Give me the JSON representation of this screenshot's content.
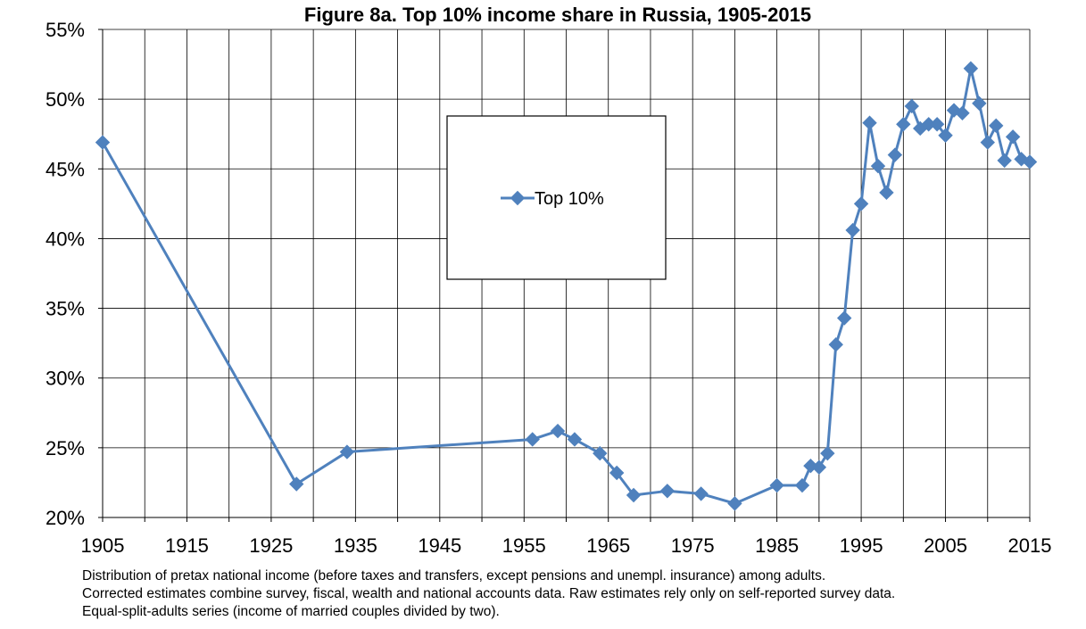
{
  "chart_data": {
    "type": "line",
    "title": "Figure 8a. Top 10% income share in Russia, 1905-2015",
    "xlabel": "",
    "ylabel": "",
    "xlim": [
      1905,
      2015
    ],
    "ylim": [
      20,
      55
    ],
    "x_ticks": [
      1905,
      1915,
      1925,
      1935,
      1945,
      1955,
      1965,
      1975,
      1985,
      1995,
      2005,
      2015
    ],
    "y_ticks": [
      20,
      25,
      30,
      35,
      40,
      45,
      50,
      55
    ],
    "y_tick_labels": [
      "20%",
      "25%",
      "30%",
      "35%",
      "40%",
      "45%",
      "50%",
      "55%"
    ],
    "grid": true,
    "legend_position": "upper-center",
    "series": [
      {
        "name": "Top 10%",
        "color": "#4F81BD",
        "marker": "diamond",
        "points": [
          [
            1905,
            46.9
          ],
          [
            1928,
            22.4
          ],
          [
            1934,
            24.7
          ],
          [
            1956,
            25.6
          ],
          [
            1959,
            26.2
          ],
          [
            1961,
            25.6
          ],
          [
            1964,
            24.6
          ],
          [
            1966,
            23.2
          ],
          [
            1968,
            21.6
          ],
          [
            1972,
            21.9
          ],
          [
            1976,
            21.7
          ],
          [
            1980,
            21.0
          ],
          [
            1985,
            22.3
          ],
          [
            1988,
            22.3
          ],
          [
            1989,
            23.7
          ],
          [
            1990,
            23.6
          ],
          [
            1991,
            24.6
          ],
          [
            1992,
            32.4
          ],
          [
            1993,
            34.3
          ],
          [
            1994,
            40.6
          ],
          [
            1995,
            42.5
          ],
          [
            1996,
            48.3
          ],
          [
            1997,
            45.2
          ],
          [
            1998,
            43.3
          ],
          [
            1999,
            46.0
          ],
          [
            2000,
            48.2
          ],
          [
            2001,
            49.5
          ],
          [
            2002,
            47.9
          ],
          [
            2003,
            48.2
          ],
          [
            2004,
            48.2
          ],
          [
            2005,
            47.4
          ],
          [
            2006,
            49.2
          ],
          [
            2007,
            49.0
          ],
          [
            2008,
            52.2
          ],
          [
            2009,
            49.7
          ],
          [
            2010,
            46.9
          ],
          [
            2011,
            48.1
          ],
          [
            2012,
            45.6
          ],
          [
            2013,
            47.3
          ],
          [
            2014,
            45.7
          ],
          [
            2015,
            45.5
          ]
        ]
      }
    ]
  },
  "notes": [
    "Distribution of pretax national income (before taxes and transfers, except pensions and unempl. insurance) among adults.",
    "Corrected estimates combine survey, fiscal, wealth and national accounts data. Raw estimates rely only on self-reported survey data.",
    "Equal-split-adults series (income of married couples divided by two)."
  ]
}
